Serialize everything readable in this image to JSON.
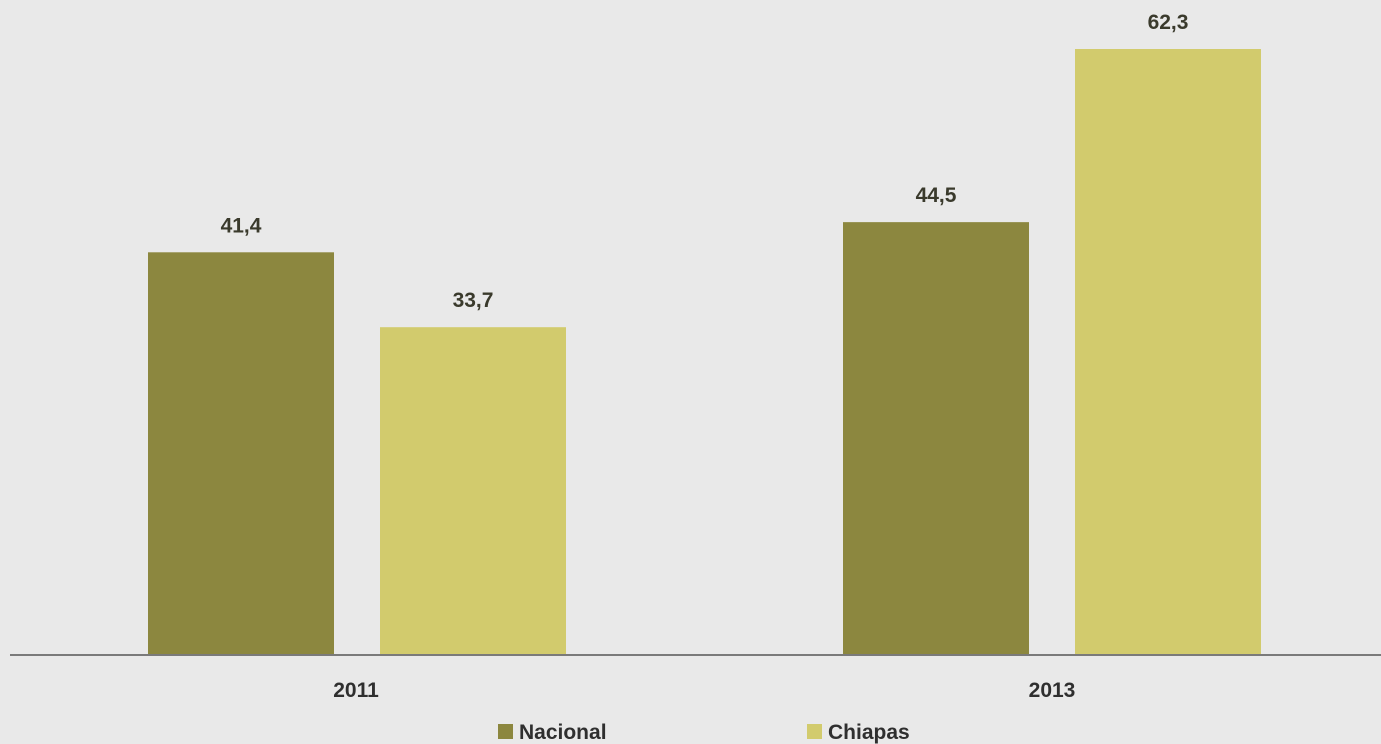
{
  "chart_data": {
    "type": "bar",
    "categories": [
      "2011",
      "2013"
    ],
    "series": [
      {
        "name": "Nacional",
        "values": [
          41.4,
          44.5
        ],
        "labels": [
          "41,4",
          "44,5"
        ],
        "color": "#8c873f"
      },
      {
        "name": "Chiapas",
        "values": [
          33.7,
          62.3
        ],
        "labels": [
          "33,7",
          "62,3"
        ],
        "color": "#d2cb6d"
      }
    ],
    "title": "",
    "xlabel": "",
    "ylabel": "",
    "ylim": [
      0,
      62.3
    ],
    "grid": false,
    "legend_position": "bottom",
    "axis_color": "#7a7a7a",
    "background": "#e9e9e9"
  }
}
